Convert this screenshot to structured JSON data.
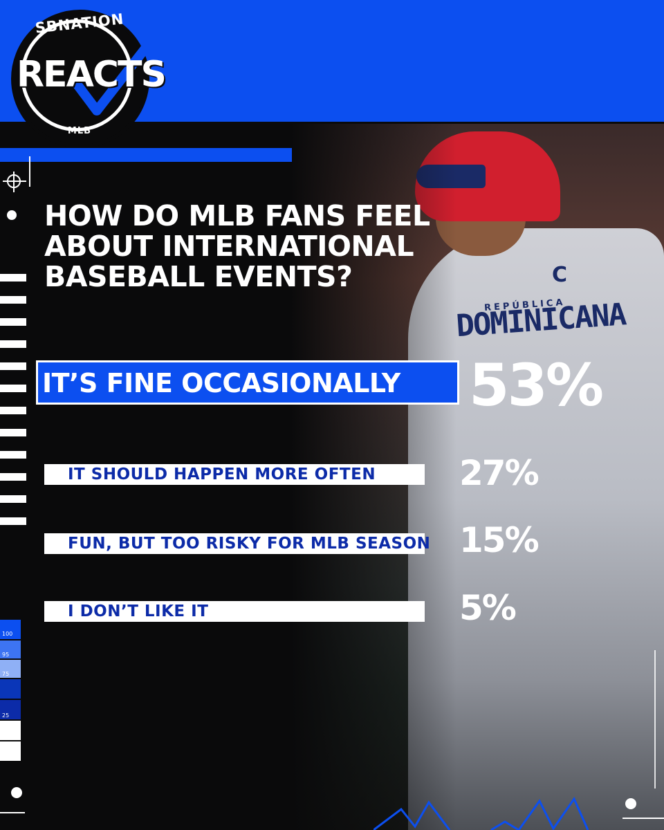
{
  "brand": {
    "top": "SBNATION",
    "main": "REACTS",
    "bottom": "MLB"
  },
  "headline": "HOW DO MLB FANS FEEL ABOUT INTERNATIONAL BASEBALL EVENTS?",
  "jersey": {
    "text": "DOMINICANA",
    "small": "REPÚBLICA",
    "captain": "C"
  },
  "poll": {
    "results": [
      {
        "label": "IT’S FINE OCCASIONALLY",
        "percent": "53%"
      },
      {
        "label": "IT SHOULD HAPPEN MORE OFTEN",
        "percent": "27%"
      },
      {
        "label": "FUN, BUT TOO RISKY FOR MLB SEASON",
        "percent": "15%"
      },
      {
        "label": "I DON’T LIKE IT",
        "percent": "5%"
      }
    ]
  },
  "scale_labels": [
    "100",
    "95",
    "75",
    "25"
  ],
  "colors": {
    "accent": "#0c4ff0",
    "text_dark": "#0c2ba8",
    "background": "#0a0a0b"
  }
}
